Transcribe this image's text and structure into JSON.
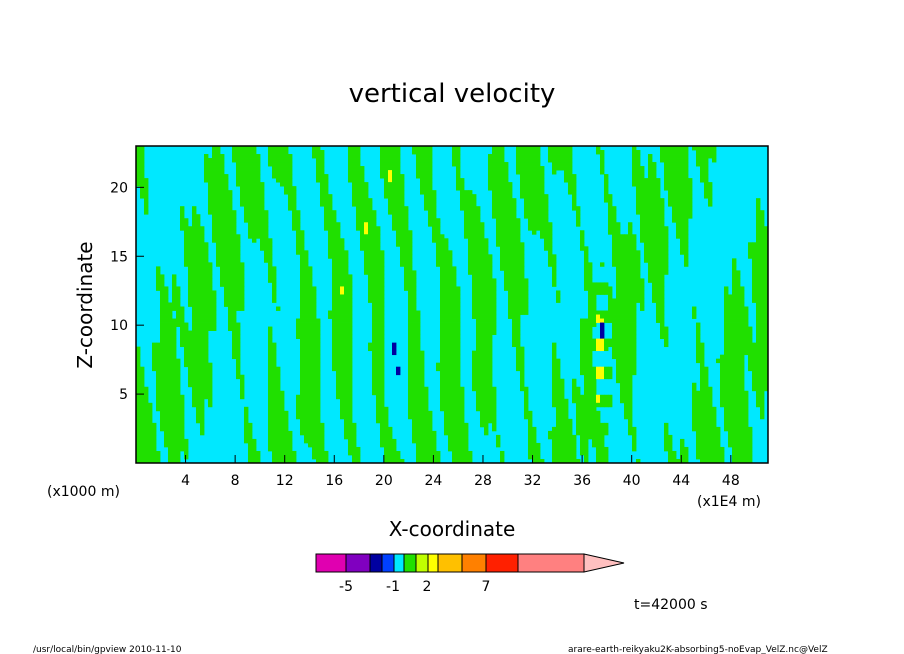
{
  "chart_data": {
    "type": "heatmap",
    "title": "vertical velocity",
    "xlabel": "X-coordinate",
    "ylabel": "Z-coordinate",
    "x_unit_left": "(x1000 m)",
    "x_unit_right": "(x1E4 m)",
    "xlim": [
      0,
      51
    ],
    "ylim": [
      0,
      23
    ],
    "x_ticks": [
      4,
      8,
      12,
      16,
      20,
      24,
      28,
      32,
      36,
      40,
      44,
      48
    ],
    "x_tick_labels": [
      "4",
      "8",
      "12",
      "16",
      "20",
      "24",
      "28",
      "32",
      "36",
      "40",
      "44",
      "48"
    ],
    "y_ticks": [
      5,
      10,
      15,
      20
    ],
    "y_tick_labels": [
      "5",
      "10",
      "15",
      "20"
    ],
    "colorbar": {
      "colors": [
        "#e000b0",
        "#8000c0",
        "#0000a0",
        "#0040ff",
        "#00e8ff",
        "#20e000",
        "#c0ff00",
        "#ffff00",
        "#ffc000",
        "#ff8000",
        "#ff2000",
        "#ff8080"
      ],
      "end_color": "#ffc0c0",
      "labels": [
        "-5",
        "-1",
        "2",
        "7"
      ]
    },
    "time_label": "t=42000 s",
    "colors": {
      "negative_fill": "#00e8ff",
      "positive_fill": "#20e000",
      "strong_down": "#0000a0",
      "strong_up": "#ffff00"
    }
  },
  "footer": {
    "left": "/usr/local/bin/gpview  2010-11-10",
    "right": "arare-earth-reikyaku2K-absorbing5-noEvap_VelZ.nc@VelZ"
  }
}
